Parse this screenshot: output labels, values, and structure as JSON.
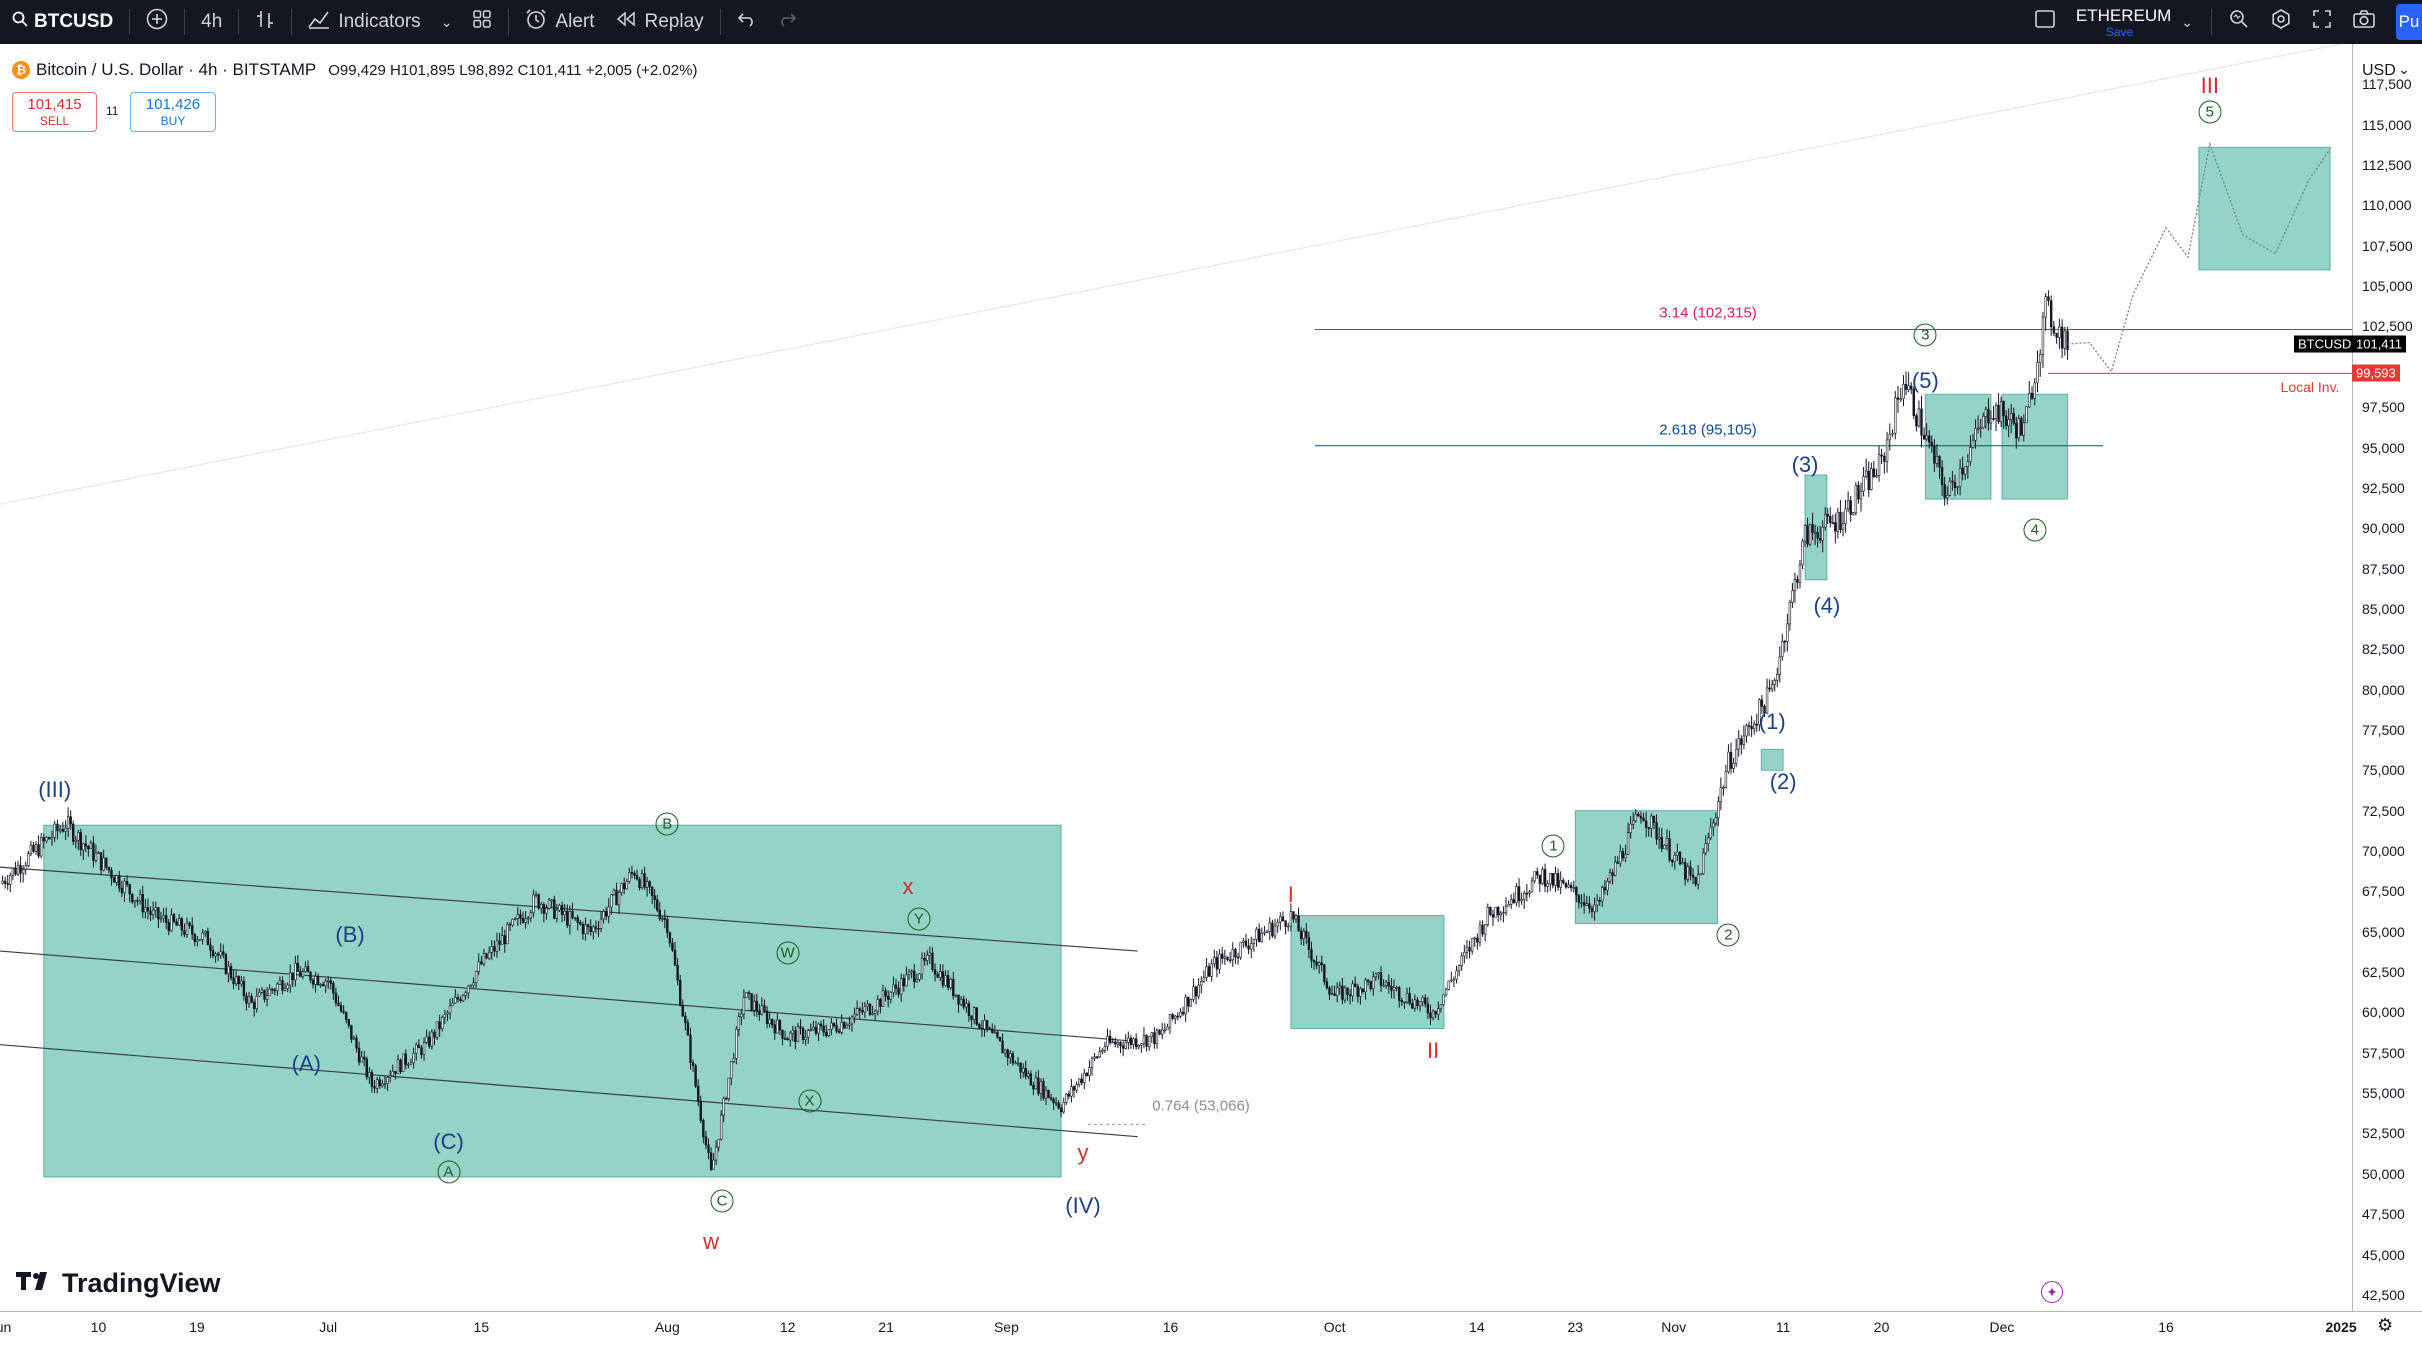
{
  "toolbar": {
    "symbol": "BTCUSD",
    "interval": "4h",
    "indicators_label": "Indicators",
    "alert_label": "Alert",
    "replay_label": "Replay",
    "layout_name": "ETHEREUM",
    "layout_save": "Save",
    "publish_label": "Pu"
  },
  "legend": {
    "title": "Bitcoin / U.S. Dollar · 4h · BITSTAMP",
    "ohlc": "O99,429 H101,895 L98,892 C101,411 +2,005 (+2.02%)",
    "sell_price": "101,415",
    "sell_label": "SELL",
    "spread": "11",
    "buy_price": "101,426",
    "buy_label": "BUY"
  },
  "price_axis": {
    "currency": "USD",
    "ticks": [
      "117,500",
      "115,000",
      "112,500",
      "110,000",
      "107,500",
      "105,000",
      "102,500",
      "97,500",
      "95,000",
      "92,500",
      "90,000",
      "87,500",
      "85,000",
      "82,500",
      "80,000",
      "77,500",
      "75,000",
      "72,500",
      "70,000",
      "67,500",
      "65,000",
      "62,500",
      "60,000",
      "57,500",
      "55,000",
      "52,500",
      "50,000",
      "47,500",
      "45,000",
      "42,500"
    ],
    "last_price": "101,411",
    "last_symbol": "BTCUSD",
    "inv_price": "99,593",
    "inv_label": "Local Inv."
  },
  "time_axis": {
    "ticks": [
      "Jun",
      "10",
      "19",
      "Jul",
      "15",
      "Aug",
      "12",
      "21",
      "Sep",
      "16",
      "Oct",
      "14",
      "23",
      "Nov",
      "11",
      "20",
      "Dec",
      "16",
      "2025"
    ]
  },
  "chart_data": {
    "type": "line",
    "symbol": "BTCUSD",
    "interval": "4h",
    "exchange": "BITSTAMP",
    "x_range": [
      "2024-06-01",
      "2025-01-02"
    ],
    "ylim": [
      41500,
      120000
    ],
    "price_path": {
      "x": [
        "2024-06-01",
        "2024-06-05",
        "2024-06-07",
        "2024-06-10",
        "2024-06-15",
        "2024-06-20",
        "2024-06-24",
        "2024-06-28",
        "2024-07-01",
        "2024-07-05",
        "2024-07-10",
        "2024-07-15",
        "2024-07-20",
        "2024-07-25",
        "2024-07-29",
        "2024-08-01",
        "2024-08-05",
        "2024-08-08",
        "2024-08-12",
        "2024-08-16",
        "2024-08-20",
        "2024-08-25",
        "2024-08-30",
        "2024-09-03",
        "2024-09-06",
        "2024-09-10",
        "2024-09-15",
        "2024-09-20",
        "2024-09-27",
        "2024-10-01",
        "2024-10-05",
        "2024-10-10",
        "2024-10-15",
        "2024-10-20",
        "2024-10-25",
        "2024-10-29",
        "2024-11-03",
        "2024-11-06",
        "2024-11-10",
        "2024-11-13",
        "2024-11-16",
        "2024-11-20",
        "2024-11-22",
        "2024-11-26",
        "2024-11-30",
        "2024-12-03",
        "2024-12-05",
        "2024-12-07"
      ],
      "y": [
        68000,
        70500,
        71700,
        69500,
        66000,
        64500,
        60500,
        62500,
        62000,
        55500,
        58000,
        63000,
        67000,
        65000,
        68800,
        65500,
        50000,
        61000,
        58500,
        59000,
        60500,
        63200,
        59000,
        56000,
        54200,
        58000,
        58500,
        63000,
        66000,
        61000,
        62000,
        60000,
        66000,
        68500,
        66500,
        72500,
        67800,
        75500,
        80000,
        89500,
        90500,
        94000,
        99300,
        92000,
        97500,
        96000,
        103500,
        101411
      ]
    },
    "projection": {
      "x": [
        "2024-12-07",
        "2024-12-09",
        "2024-12-11",
        "2024-12-13",
        "2024-12-16",
        "2024-12-18",
        "2024-12-20",
        "2024-12-23",
        "2024-12-26",
        "2024-12-29",
        "2024-12-31"
      ],
      "y": [
        101411,
        101500,
        99700,
        104500,
        108600,
        106800,
        113800,
        108200,
        107000,
        111500,
        113500
      ]
    },
    "levels": [
      {
        "label": "3.14 (102,315)",
        "price": 102315,
        "color": "#d81b60"
      },
      {
        "label": "2.618 (95,105)",
        "price": 95105,
        "color": "#0d47a1"
      },
      {
        "label": "Local Inv.",
        "price": 99593,
        "color": "#e53935"
      },
      {
        "label": "0.764 (53,066)",
        "price": 53066,
        "color": "#999999"
      }
    ],
    "boxes": [
      {
        "x0": "2024-06-05",
        "x1": "2024-09-06",
        "y0": 49800,
        "y1": 71600
      },
      {
        "x0": "2024-09-27",
        "x1": "2024-10-11",
        "y0": 59000,
        "y1": 66000
      },
      {
        "x0": "2024-10-23",
        "x1": "2024-11-05",
        "y0": 65500,
        "y1": 72500
      },
      {
        "x0": "2024-11-13",
        "x1": "2024-11-15",
        "y0": 86800,
        "y1": 93300
      },
      {
        "x0": "2024-11-24",
        "x1": "2024-11-30",
        "y0": 91800,
        "y1": 98300
      },
      {
        "x0": "2024-12-01",
        "x1": "2024-12-07",
        "y0": 91800,
        "y1": 98300
      },
      {
        "x0": "2024-11-09",
        "x1": "2024-11-11",
        "y0": 75000,
        "y1": 76300
      },
      {
        "x0": "2024-12-19",
        "x1": "2024-12-31",
        "y0": 106000,
        "y1": 113600
      }
    ],
    "channel_lines": [
      {
        "x0": "2024-06-01",
        "y0": 69000,
        "x1": "2024-09-13",
        "y1": 63800
      },
      {
        "x0": "2024-06-01",
        "y0": 63800,
        "x1": "2024-09-13",
        "y1": 58200
      },
      {
        "x0": "2024-06-01",
        "y0": 58000,
        "x1": "2024-09-13",
        "y1": 52300
      }
    ],
    "trend_line": {
      "x0": "2024-06-01",
      "y0": 91500,
      "x1": "2025-01-01",
      "y1": 120000
    },
    "wave_labels": [
      {
        "text": "(III)",
        "x": "2024-06-06",
        "price": 73800,
        "style": "blue"
      },
      {
        "text": "(A)",
        "x": "2024-06-29",
        "price": 56800,
        "style": "blue"
      },
      {
        "text": "(B)",
        "x": "2024-07-03",
        "price": 64800,
        "style": "blue"
      },
      {
        "text": "(C)",
        "x": "2024-07-12",
        "price": 52000,
        "style": "blue"
      },
      {
        "text": "(IV)",
        "x": "2024-09-08",
        "price": 48000,
        "style": "blue"
      },
      {
        "text": "(1)",
        "x": "2024-11-10",
        "price": 78000,
        "style": "blue"
      },
      {
        "text": "(2)",
        "x": "2024-11-11",
        "price": 74300,
        "style": "blue"
      },
      {
        "text": "(3)",
        "x": "2024-11-13",
        "price": 93900,
        "style": "blue"
      },
      {
        "text": "(4)",
        "x": "2024-11-15",
        "price": 85200,
        "style": "blue"
      },
      {
        "text": "(5)",
        "x": "2024-11-24",
        "price": 99100,
        "style": "blue"
      },
      {
        "text": "x",
        "x": "2024-08-23",
        "price": 67800,
        "style": "red"
      },
      {
        "text": "y",
        "x": "2024-09-08",
        "price": 51300,
        "style": "red"
      },
      {
        "text": "w",
        "x": "2024-08-05",
        "price": 45800,
        "style": "red"
      },
      {
        "text": "I",
        "x": "2024-09-27",
        "price": 67300,
        "style": "red"
      },
      {
        "text": "II",
        "x": "2024-10-10",
        "price": 57600,
        "style": "red"
      },
      {
        "text": "III",
        "x": "2024-12-20",
        "price": 117400,
        "style": "red"
      },
      {
        "text": "A",
        "x": "2024-07-12",
        "price": 50100,
        "style": "circle"
      },
      {
        "text": "B",
        "x": "2024-08-01",
        "price": 71700,
        "style": "circle"
      },
      {
        "text": "C",
        "x": "2024-08-06",
        "price": 48300,
        "style": "circle"
      },
      {
        "text": "W",
        "x": "2024-08-12",
        "price": 63700,
        "style": "circle"
      },
      {
        "text": "X",
        "x": "2024-08-14",
        "price": 54500,
        "style": "circle"
      },
      {
        "text": "Y",
        "x": "2024-08-24",
        "price": 65800,
        "style": "circle"
      },
      {
        "text": "1",
        "x": "2024-10-21",
        "price": 70300,
        "style": "circle"
      },
      {
        "text": "2",
        "x": "2024-11-06",
        "price": 64800,
        "style": "circle"
      },
      {
        "text": "3",
        "x": "2024-11-24",
        "price": 102000,
        "style": "circle"
      },
      {
        "text": "4",
        "x": "2024-12-04",
        "price": 89900,
        "style": "circle"
      },
      {
        "text": "5",
        "x": "2024-12-20",
        "price": 115800,
        "style": "circle"
      }
    ]
  },
  "colors": {
    "box_fill": "#4db6a0",
    "box_stroke": "#1e8f7e",
    "candle": "#131722",
    "toolbar_bg": "#131722",
    "accent": "#2962ff",
    "inv_line": "#e53935",
    "fib_red": "#d81b60",
    "fib_blue": "#0d47a1",
    "label_blue": "#1d3f8a",
    "label_green": "#1b5e20"
  },
  "icons": [
    "search-icon",
    "add-symbol-icon",
    "bar-style-icon",
    "indicators-icon",
    "templates-icon",
    "alert-icon",
    "replay-icon",
    "undo-icon",
    "redo-icon",
    "layout-icon",
    "quick-search-icon",
    "settings-icon",
    "fullscreen-icon",
    "snapshot-icon",
    "tradingview-logo",
    "plus-circle-icon",
    "gear-icon"
  ],
  "watermark": "TradingView"
}
